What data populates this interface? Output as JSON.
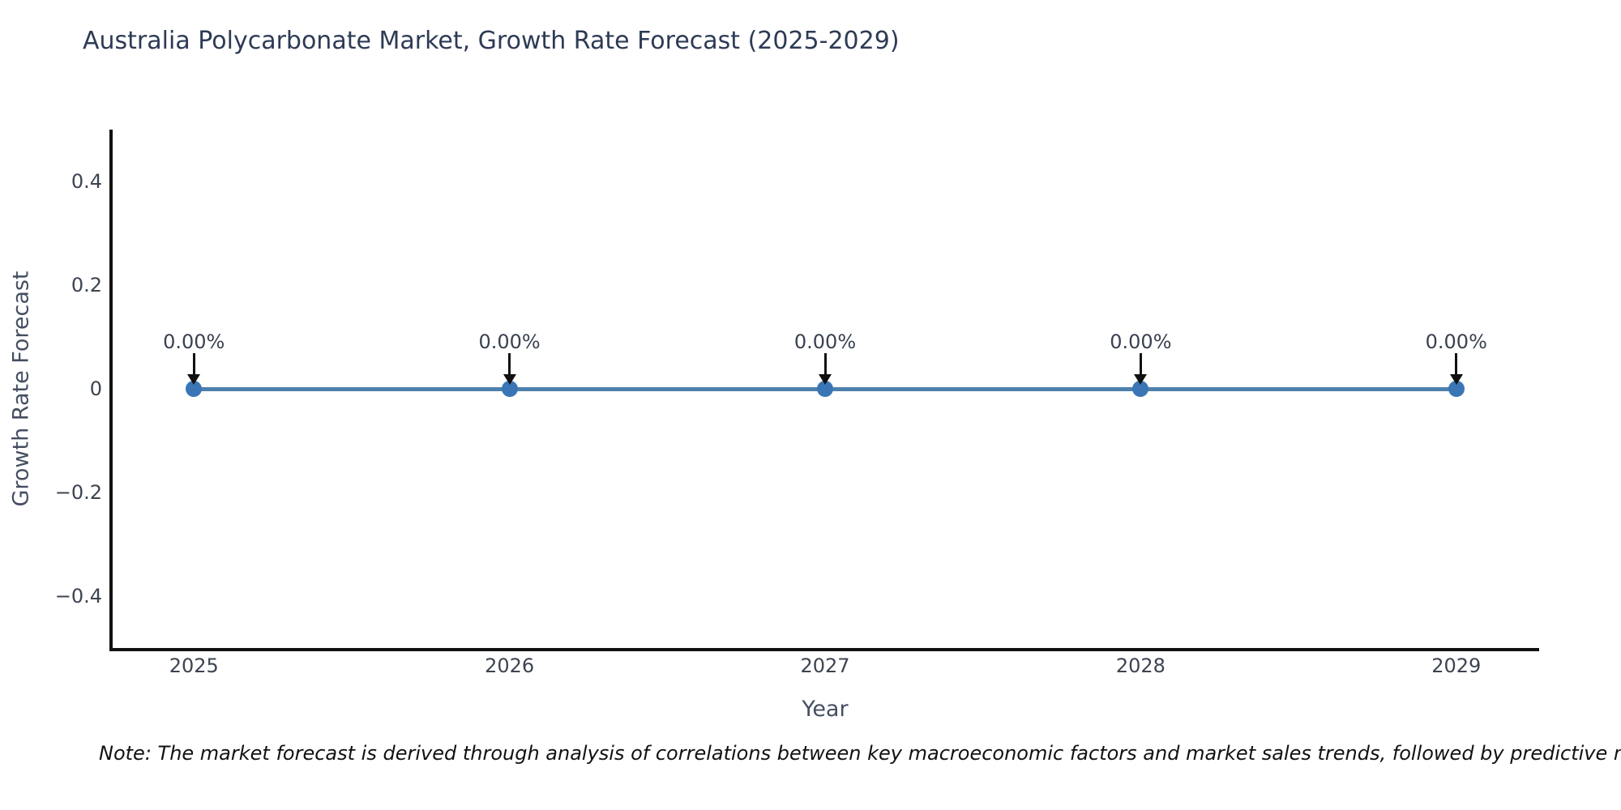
{
  "title": "Australia Polycarbonate Market, Growth Rate Forecast (2025-2029)",
  "note": {
    "text": "Note: The market forecast is derived through analysis of correlations between key macroeconomic factors and market sales trends, followed by predictive modeling to project future sales"
  },
  "chart_data": {
    "type": "line",
    "title": "Australia Polycarbonate Market, Growth Rate Forecast (2025-2029)",
    "xlabel": "Year",
    "ylabel": "Growth Rate Forecast",
    "x": [
      2025,
      2026,
      2027,
      2028,
      2029
    ],
    "values": [
      0,
      0,
      0,
      0,
      0
    ],
    "point_labels": [
      "0.00%",
      "0.00%",
      "0.00%",
      "0.00%",
      "0.00%"
    ],
    "xlim": [
      2024.74,
      2029.26
    ],
    "ylim": [
      -0.5,
      0.5
    ],
    "xticks": [
      2025,
      2026,
      2027,
      2028,
      2029
    ],
    "xtick_labels": [
      "2025",
      "2026",
      "2027",
      "2028",
      "2029"
    ],
    "yticks": [
      0.4,
      0.2,
      0,
      -0.2,
      -0.4
    ],
    "ytick_labels": [
      "0.4",
      "0.2",
      "0",
      "−0.2",
      "−0.4"
    ],
    "grid": false,
    "legend": null,
    "line_color": "#4e80ad",
    "marker_color": "#3a76b5",
    "arrow_color": "#111111"
  }
}
